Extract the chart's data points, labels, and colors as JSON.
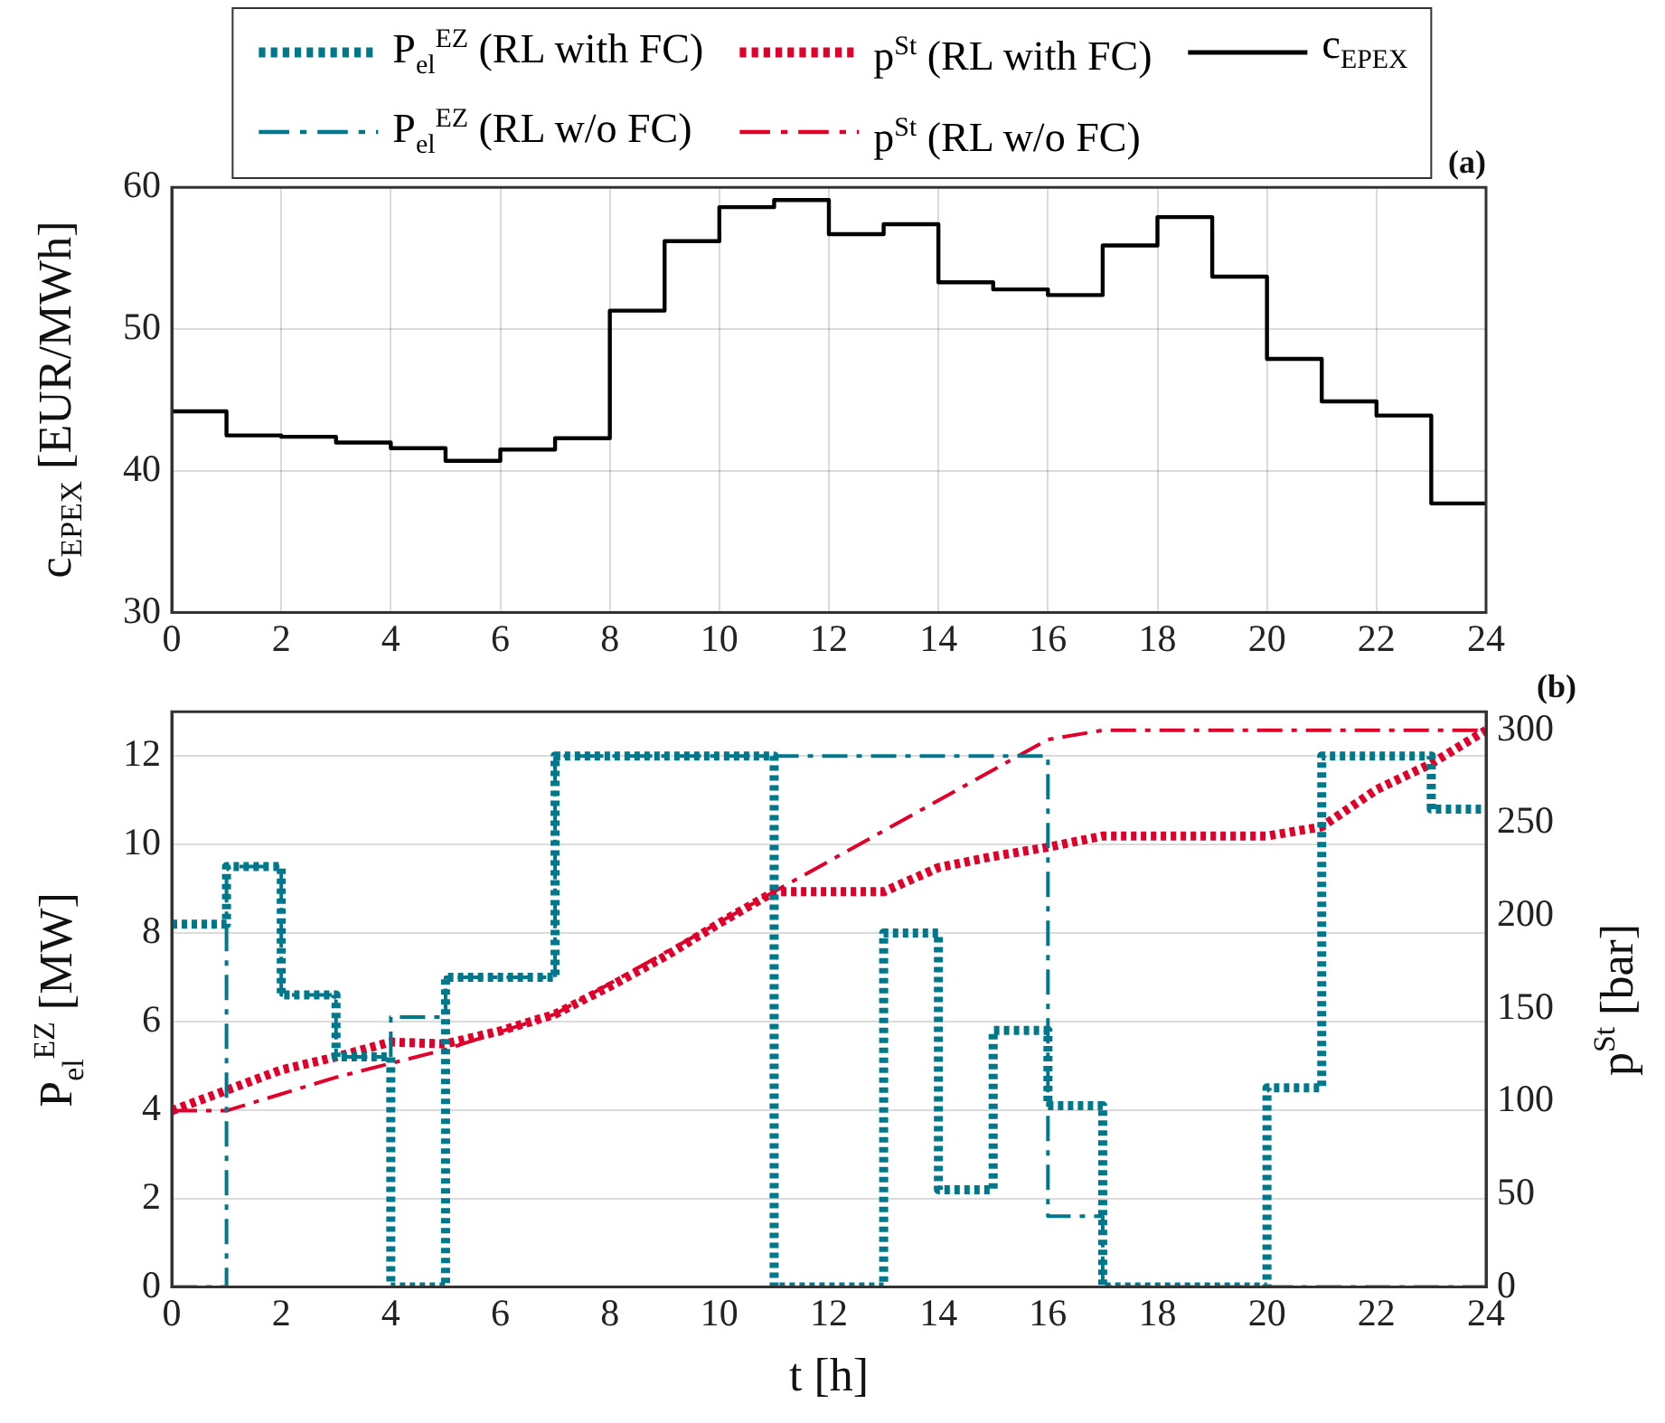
{
  "chart_data": [
    {
      "type": "step",
      "title": "(a)",
      "ylabel": "c$_{EPEX}$ [EUR/MWh]",
      "xlim": [
        0,
        24
      ],
      "xticks": [
        0,
        2,
        4,
        6,
        8,
        10,
        12,
        14,
        16,
        18,
        20,
        22,
        24
      ],
      "ylim": [
        30,
        60
      ],
      "yticks": [
        30,
        40,
        50,
        60
      ],
      "grid": true,
      "legend": "top",
      "series": [
        {
          "name": "c$_{EPEX}$",
          "color": "#000000",
          "line_style": "solid",
          "x": [
            0,
            1,
            2,
            3,
            4,
            5,
            6,
            7,
            8,
            9,
            10,
            11,
            12,
            13,
            14,
            15,
            16,
            17,
            18,
            19,
            20,
            21,
            22,
            23,
            24
          ],
          "values": [
            44.2,
            42.5,
            42.4,
            42.0,
            41.6,
            40.7,
            41.5,
            42.3,
            51.3,
            56.2,
            58.6,
            59.1,
            56.7,
            57.4,
            53.3,
            52.8,
            52.4,
            55.9,
            57.9,
            53.7,
            47.9,
            44.9,
            43.9,
            37.7,
            37.7
          ]
        }
      ]
    },
    {
      "type": "step",
      "title": "(b)",
      "xlabel": "t [h]",
      "ylabel": "P$_{el}$$^{EZ}$ [MW]",
      "y2label": "p$^{St}$ [bar]",
      "xlim": [
        0,
        24
      ],
      "xticks": [
        0,
        2,
        4,
        6,
        8,
        10,
        12,
        14,
        16,
        18,
        20,
        22,
        24
      ],
      "ylim": [
        0,
        13
      ],
      "yticks": [
        0,
        2,
        4,
        6,
        8,
        10,
        12
      ],
      "y2lim": [
        0,
        310
      ],
      "y2ticks": [
        0,
        50,
        100,
        150,
        200,
        250,
        300
      ],
      "grid": "y",
      "legend": "top",
      "series": [
        {
          "name": "P$_{el}$$^{EZ}$ (RL with FC)",
          "color": "#00788c",
          "line_style": "dotted",
          "x": [
            0,
            1,
            2,
            3,
            4,
            5,
            6,
            7,
            8,
            9,
            10,
            11,
            12,
            13,
            14,
            15,
            16,
            17,
            18,
            19,
            20,
            21,
            22,
            23,
            24
          ],
          "values": [
            8.2,
            9.5,
            6.6,
            5.2,
            0,
            7.0,
            7.0,
            12,
            12,
            12,
            12,
            0,
            0,
            8.0,
            2.2,
            5.8,
            4.1,
            0,
            0,
            0,
            4.5,
            12,
            12,
            10.8,
            10.8
          ]
        },
        {
          "name": "P$_{el}$$^{EZ}$ (RL w/o FC)",
          "color": "#00788c",
          "line_style": "dashdot",
          "x": [
            0,
            1,
            2,
            3,
            4,
            5,
            6,
            7,
            8,
            9,
            10,
            11,
            12,
            13,
            14,
            15,
            16,
            17,
            18,
            19,
            20,
            21,
            22,
            23,
            24
          ],
          "values": [
            0,
            9.5,
            6.6,
            5.2,
            6.1,
            7.0,
            7.0,
            12,
            12,
            12,
            12,
            12,
            12,
            12,
            12,
            12,
            1.6,
            0,
            0,
            0,
            0,
            0,
            0,
            0,
            0
          ]
        },
        {
          "name": "p$^{St}$ (RL with FC)",
          "type": "line",
          "axis": "y2",
          "color": "#e0002a",
          "line_style": "dotted",
          "x": [
            0,
            1,
            2,
            3,
            4,
            5,
            6,
            7,
            8,
            9,
            10,
            11,
            12,
            13,
            14,
            15,
            16,
            17,
            18,
            19,
            20,
            21,
            22,
            23,
            24
          ],
          "values": [
            95,
            106,
            117,
            124,
            132,
            131,
            138,
            147,
            162,
            178,
            196,
            213,
            213,
            213,
            226,
            232,
            237,
            243,
            243,
            243,
            243,
            248,
            268,
            282,
            300
          ]
        },
        {
          "name": "p$^{St}$ (RL w/o FC)",
          "type": "line",
          "axis": "y2",
          "color": "#e0002a",
          "line_style": "dashdot",
          "x": [
            0,
            1,
            3,
            5,
            7,
            11,
            16,
            17,
            24
          ],
          "values": [
            95,
            95,
            113,
            128,
            147,
            213,
            295,
            300,
            300
          ]
        }
      ]
    }
  ]
}
